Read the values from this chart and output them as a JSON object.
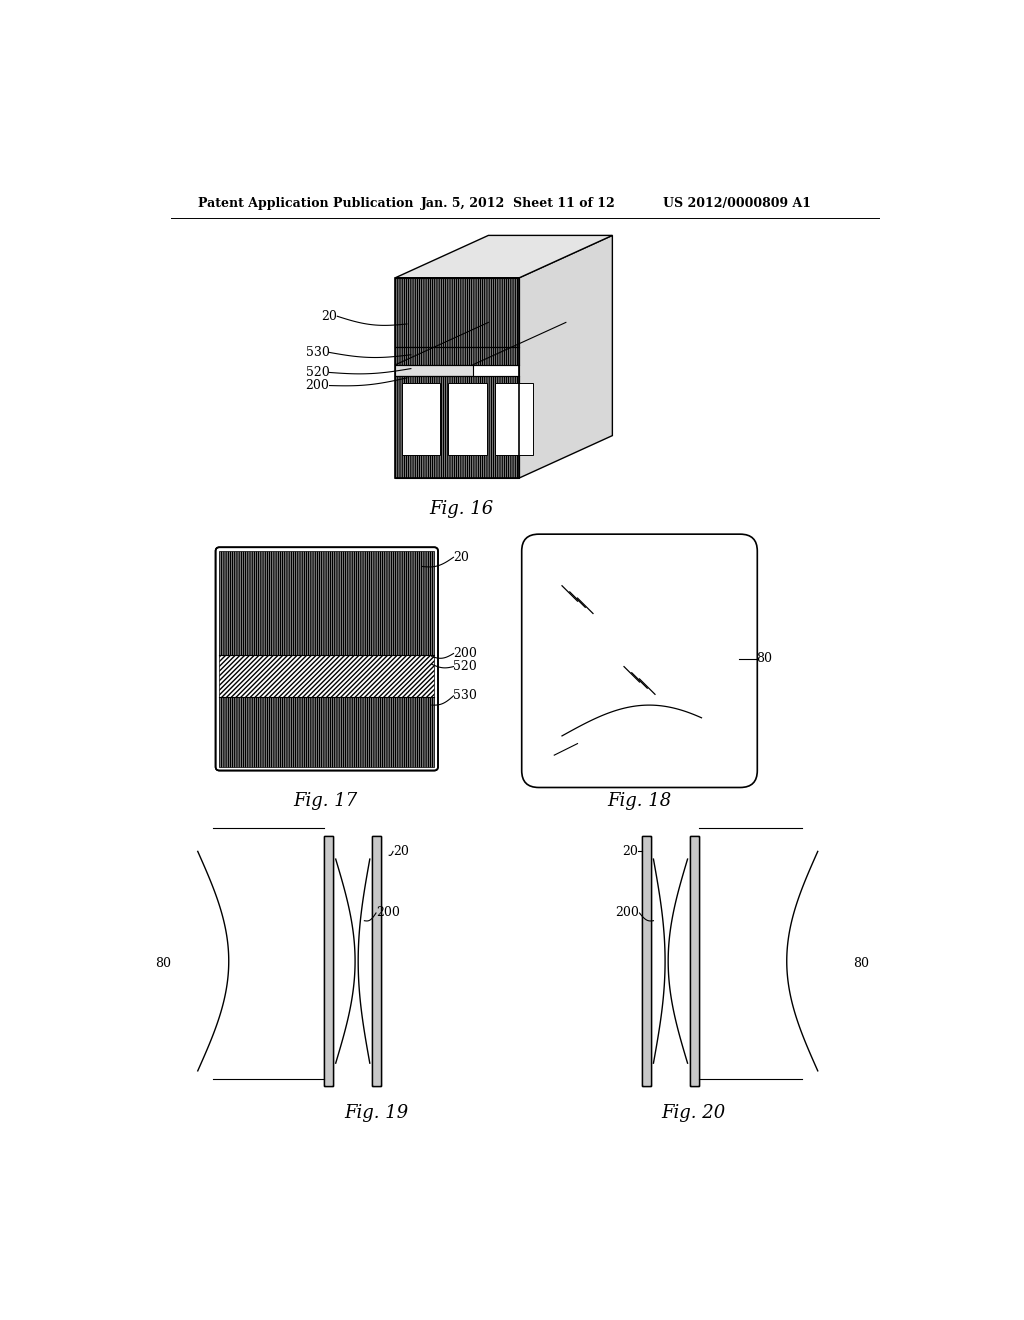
{
  "bg_color": "#ffffff",
  "text_color": "#000000",
  "header_left": "Patent Application Publication",
  "header_mid": "Jan. 5, 2012  Sheet 11 of 12",
  "header_right": "US 2012/0000809 A1",
  "fig16_label": "Fig. 16",
  "fig17_label": "Fig. 17",
  "fig18_label": "Fig. 18",
  "fig19_label": "Fig. 19",
  "fig20_label": "Fig. 20"
}
